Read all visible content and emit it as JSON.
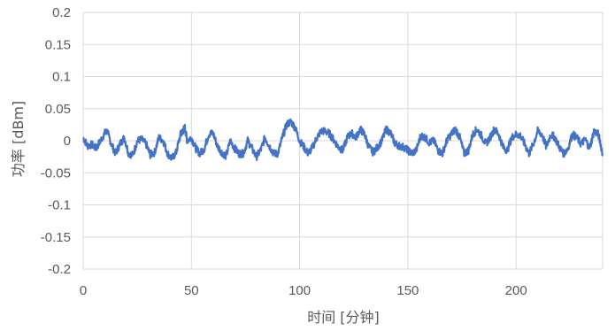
{
  "chart_data": {
    "type": "line",
    "title": "",
    "xlabel": "时间 [分钟]",
    "ylabel": "功率 [dBm]",
    "xlim": [
      0,
      240
    ],
    "ylim": [
      -0.2,
      0.2
    ],
    "x_ticks": [
      0,
      50,
      100,
      150,
      200
    ],
    "x_tick_labels": [
      "0",
      "50",
      "100",
      "150",
      "200"
    ],
    "y_ticks": [
      0.2,
      0.15,
      0.1,
      0.05,
      0,
      -0.05,
      -0.1,
      -0.15,
      -0.2
    ],
    "y_tick_labels": [
      "0.2",
      "0.15",
      "0.1",
      "0.05",
      "0",
      "-0.05",
      "-0.1",
      "-0.15",
      "-0.2"
    ],
    "grid": {
      "x": true,
      "y": true
    },
    "legend": "none",
    "colors": {
      "series": "#4472C4",
      "grid": "#D9D9D9",
      "text": "#595959"
    },
    "series": [
      {
        "x": [
          0,
          2,
          4,
          6,
          8,
          10,
          11,
          13,
          15,
          17,
          19,
          21,
          23,
          25,
          27,
          29,
          31,
          33,
          35,
          37,
          39,
          41,
          43,
          45,
          46,
          47,
          48,
          50,
          52,
          54,
          56,
          58,
          60,
          62,
          64,
          66,
          68,
          70,
          72,
          74,
          76,
          78,
          80,
          82,
          84,
          86,
          88,
          90,
          92,
          94,
          96,
          98,
          100,
          102,
          104,
          106,
          108,
          110,
          112,
          114,
          116,
          118,
          120,
          122,
          124,
          126,
          128,
          130,
          132,
          134,
          136,
          138,
          140,
          142,
          144,
          146,
          148,
          150,
          152,
          154,
          156,
          158,
          160,
          162,
          164,
          166,
          168,
          170,
          172,
          174,
          176,
          178,
          180,
          182,
          184,
          186,
          188,
          190,
          192,
          194,
          196,
          198,
          200,
          202,
          204,
          206,
          208,
          210,
          212,
          214,
          216,
          218,
          220,
          222,
          224,
          226,
          228,
          230,
          232,
          234,
          236,
          238,
          240
        ],
        "y": [
          0.005,
          -0.008,
          -0.006,
          -0.012,
          0.0,
          0.012,
          0.015,
          -0.005,
          -0.02,
          -0.005,
          0.005,
          -0.02,
          -0.022,
          0.0,
          0.002,
          -0.005,
          -0.022,
          -0.018,
          0.005,
          0.0,
          -0.02,
          -0.028,
          -0.018,
          0.01,
          0.015,
          0.02,
          0.0,
          0.005,
          -0.012,
          -0.02,
          -0.012,
          0.01,
          0.012,
          -0.008,
          -0.018,
          -0.024,
          0.0,
          -0.012,
          -0.02,
          -0.02,
          0.0,
          -0.012,
          -0.025,
          -0.015,
          0.005,
          -0.008,
          -0.02,
          -0.02,
          0.005,
          0.025,
          0.03,
          0.02,
          0.0,
          -0.01,
          -0.02,
          -0.01,
          0.005,
          0.015,
          0.015,
          0.01,
          0.0,
          -0.01,
          -0.015,
          0.005,
          0.012,
          0.005,
          0.018,
          0.01,
          -0.01,
          -0.018,
          -0.01,
          0.0,
          0.018,
          0.012,
          -0.004,
          -0.008,
          -0.01,
          -0.015,
          -0.02,
          -0.014,
          0.008,
          0.005,
          -0.003,
          0.0,
          -0.015,
          -0.02,
          0.0,
          0.01,
          0.018,
          0.005,
          -0.02,
          -0.015,
          0.01,
          0.018,
          0.008,
          -0.005,
          0.005,
          0.018,
          0.01,
          -0.01,
          -0.015,
          0.005,
          0.01,
          0.008,
          -0.005,
          -0.02,
          -0.005,
          0.015,
          0.01,
          -0.01,
          0.01,
          0.005,
          -0.01,
          -0.02,
          -0.012,
          0.01,
          0.005,
          -0.005,
          0.002,
          -0.012,
          0.015,
          0.01,
          -0.02
        ]
      }
    ]
  }
}
